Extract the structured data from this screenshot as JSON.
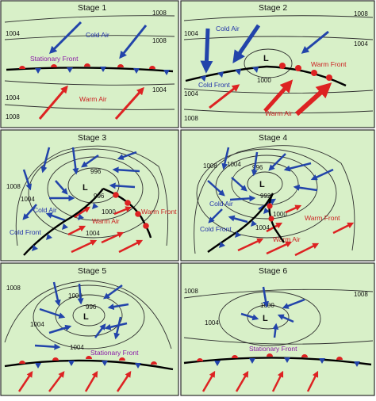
{
  "colors": {
    "panel_background": "#d8f0c8",
    "cold_arrow": "#2244aa",
    "warm_arrow": "#dd2222",
    "cold_front_triangle": "#2244aa",
    "warm_front_semicircle": "#dd2222",
    "stationary_front_label": "#8a1aa8",
    "isobar": "#2f2f2f"
  },
  "panels": [
    {
      "title": "Stage 1",
      "isobars": [
        "1008",
        "1004",
        "1008",
        "1004",
        "1004",
        "1008"
      ],
      "labels": {
        "cold_air": "Cold Air",
        "warm_air": "Warm Air",
        "stationary_front": "Stationary Front"
      }
    },
    {
      "title": "Stage 2",
      "isobars": [
        "1008",
        "1004",
        "1004",
        "1000",
        "1004",
        "1008"
      ],
      "labels": {
        "cold_air": "Cold Air",
        "warm_air": "Warm Air",
        "cold_front": "Cold Front",
        "warm_front": "Warm Front"
      },
      "low": "L"
    },
    {
      "title": "Stage 3",
      "isobars": [
        "1008",
        "1004",
        "1000",
        "996",
        "996",
        "1004"
      ],
      "labels": {
        "cold_air": "Cold Air",
        "warm_air": "Warm Air",
        "cold_front": "Cold Front",
        "warm_front": "Warm Front"
      },
      "low": "L"
    },
    {
      "title": "Stage 4",
      "isobars": [
        "1008",
        "1004",
        "1000",
        "996",
        "992",
        "1004"
      ],
      "labels": {
        "cold_air": "Cold Air",
        "warm_air": "Warm Air",
        "cold_front": "Cold Front",
        "warm_front": "Warm Front"
      },
      "low": "L"
    },
    {
      "title": "Stage 5",
      "isobars": [
        "1008",
        "1004",
        "1000",
        "996",
        "1004"
      ],
      "labels": {
        "stationary_front": "Stationary Front"
      },
      "low": "L"
    },
    {
      "title": "Stage 6",
      "isobars": [
        "1008",
        "1000",
        "1004",
        "1008"
      ],
      "labels": {
        "stationary_front": "Stationary Front"
      },
      "low": "L"
    }
  ]
}
